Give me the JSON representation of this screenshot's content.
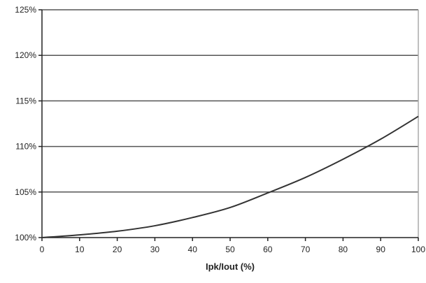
{
  "chart_data": {
    "type": "line",
    "title": "",
    "xlabel": "Ipk/Iout (%)",
    "ylabel": "",
    "xlim": [
      0,
      100
    ],
    "ylim": [
      100,
      125
    ],
    "grid": "horizontal",
    "x_ticks": [
      "0",
      "10",
      "20",
      "30",
      "40",
      "50",
      "60",
      "70",
      "80",
      "90",
      "100"
    ],
    "y_ticks": [
      "100%",
      "105%",
      "110%",
      "115%",
      "120%",
      "125%"
    ],
    "series": [
      {
        "x": [
          0,
          10,
          20,
          30,
          40,
          50,
          60,
          70,
          80,
          90,
          100
        ],
        "y": [
          100.0,
          100.3,
          100.7,
          101.3,
          102.2,
          103.3,
          104.9,
          106.6,
          108.6,
          110.8,
          113.3
        ],
        "color": "#333333"
      }
    ]
  }
}
